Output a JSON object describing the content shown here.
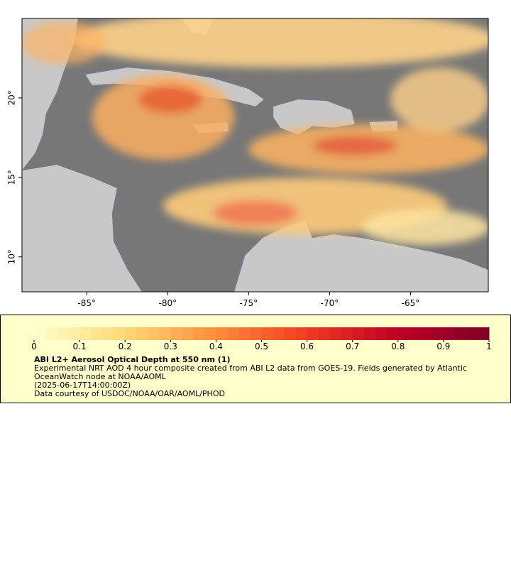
{
  "map": {
    "lon_range": [
      -89,
      -60.2
    ],
    "lat_range": [
      7.8,
      25
    ],
    "lon_ticks": [
      {
        "value": -85,
        "label": "-85°"
      },
      {
        "value": -80,
        "label": "-80°"
      },
      {
        "value": -75,
        "label": "-75°"
      },
      {
        "value": -70,
        "label": "-70°"
      },
      {
        "value": -65,
        "label": "-65°"
      }
    ],
    "lat_ticks": [
      {
        "value": 20,
        "label": "20°"
      },
      {
        "value": 15,
        "label": "15°"
      },
      {
        "value": 10,
        "label": "10°"
      }
    ]
  },
  "legend": {
    "range": [
      0,
      1
    ],
    "colorbar_ticks": [
      0,
      0.1,
      0.2,
      0.3,
      0.4,
      0.5,
      0.6,
      0.7,
      0.8,
      0.9,
      1
    ],
    "title": "ABI L2+ Aerosol Optical Depth at 550 nm (1)",
    "lines": [
      "Experimental NRT AOD 4 hour composite created from ABI L2 data from GOES-19. Fields generated by Atlantic",
      "OceanWatch node at NOAA/AOML",
      "(2025-06-17T14:00:00Z)",
      "Data courtesy of USDOC/NOAA/OAR/AOML/PHOD"
    ]
  }
}
